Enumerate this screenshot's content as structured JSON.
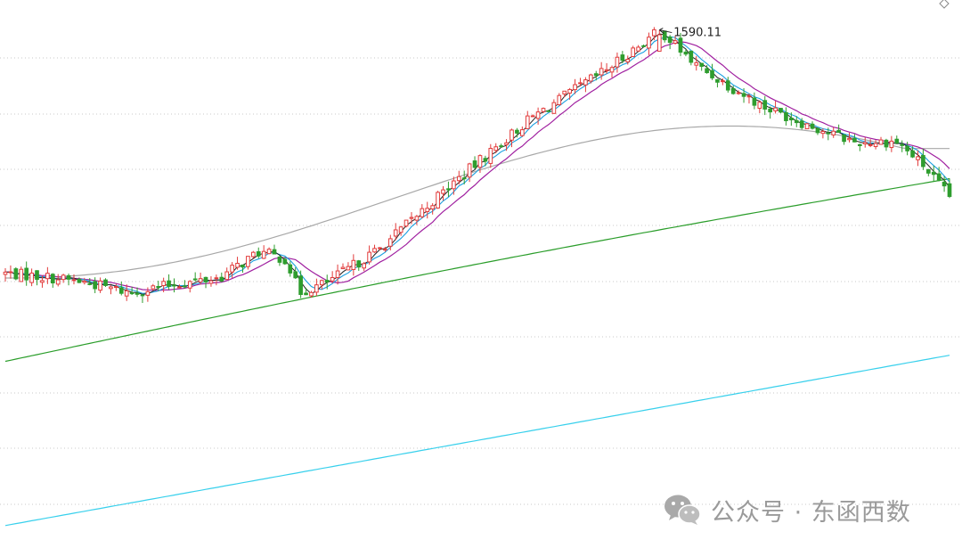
{
  "watermark": {
    "icon": "wechat-icon",
    "text": "公众号 · 东函西数"
  },
  "colors": {
    "up": "#e23b3b",
    "down": "#2e9d2e",
    "ma_fast": "#222222",
    "ma_mid": "#1aa0e0",
    "ma_slow": "#a020a0",
    "ma_60": "#a8a8a8",
    "ma_120": "#2a9d2a",
    "ma_250": "#38d0ec"
  },
  "chart_data": {
    "type": "candlestick",
    "title": "",
    "grid": true,
    "annotations": [
      {
        "label": "1590.11",
        "value": 1590.11
      }
    ],
    "ylim": [
      760,
      1610
    ],
    "candle_count": 180
  }
}
